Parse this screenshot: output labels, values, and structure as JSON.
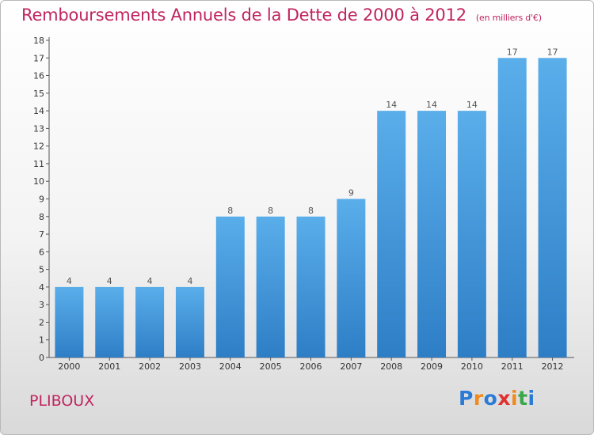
{
  "title": "Remboursements Annuels de la Dette de 2000 à 2012",
  "subtitle": "(en milliers d'€)",
  "place": "PLIBOUX",
  "logo": {
    "letters": [
      "P",
      "r",
      "o",
      "x",
      "i",
      "t",
      "i"
    ],
    "colors": [
      "#2b7bd6",
      "#f08a1c",
      "#2b7bd6",
      "#e0302f",
      "#f08a1c",
      "#3aa84a",
      "#2b7bd6"
    ]
  },
  "colors": {
    "title": "#c0245e",
    "bar_top": "#5aaeea",
    "bar_bottom": "#2e7ec6"
  },
  "chart_data": {
    "type": "bar",
    "categories": [
      "2000",
      "2001",
      "2002",
      "2003",
      "2004",
      "2005",
      "2006",
      "2007",
      "2008",
      "2009",
      "2010",
      "2011",
      "2012"
    ],
    "values": [
      4,
      4,
      4,
      4,
      8,
      8,
      8,
      9,
      14,
      14,
      14,
      17,
      17
    ],
    "value_labels": [
      "4",
      "4",
      "4",
      "4",
      "8",
      "8",
      "8",
      "9",
      "14",
      "14",
      "14",
      "17",
      "17"
    ],
    "ylim": [
      0,
      18
    ],
    "yticks": [
      0,
      1,
      2,
      3,
      4,
      5,
      6,
      7,
      8,
      9,
      10,
      11,
      12,
      13,
      14,
      15,
      16,
      17,
      18
    ],
    "grid": false
  }
}
